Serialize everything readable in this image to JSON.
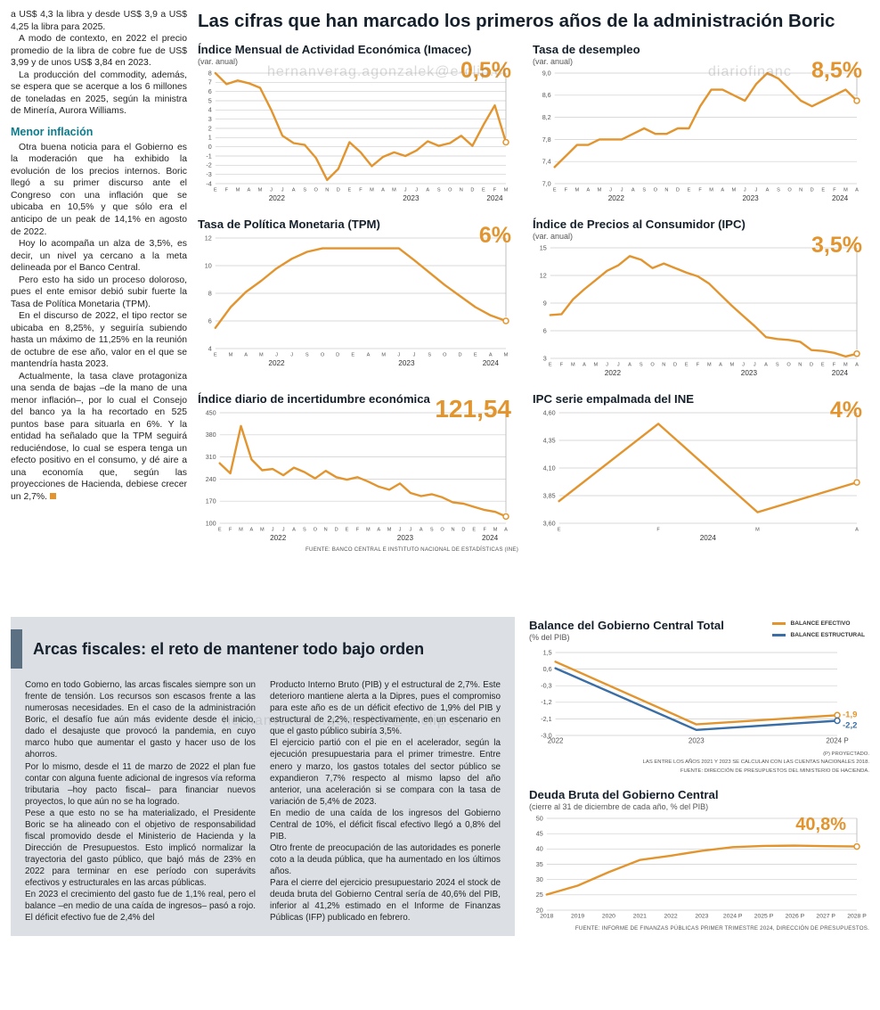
{
  "headline": "Las cifras que han marcado los primeros años de la administración Boric",
  "watermarks": [
    "hernanverag.agonzalek@e-clip.cl",
    "diariofinanc",
    "hernanvero#...gonzalez@e-clip.cl"
  ],
  "colors": {
    "accent_orange": "#E2952F",
    "accent_blue": "#3A6EA5",
    "subhead_teal": "#0E7C8C",
    "headline_dark": "#15202B",
    "graybox_bg": "#DCE0E5",
    "accent_bar": "#5B7083"
  },
  "article": {
    "intro_paragraphs": [
      "a US$ 4,3 la libra y desde US$ 3,9 a US$ 4,25 la libra para 2025.",
      "A modo de contexto, en 2022 el precio promedio de la libra de cobre fue de US$ 3,99 y de unos US$ 3,84 en 2023.",
      "La producción del commodity, además, se espera que se acerque a los 6 millones de toneladas en 2025, según la ministra de Minería, Aurora Williams."
    ],
    "subhead": "Menor inflación",
    "body_paragraphs": [
      "Otra buena noticia para el Gobierno es la moderación que ha exhibido la evolución de los precios internos. Boric llegó a su primer discurso ante el Congreso con una inflación que se ubicaba en 10,5% y que sólo era el anticipo de un peak de 14,1% en agosto de 2022.",
      "Hoy lo acompaña un alza de 3,5%, es decir, un nivel ya cercano a la meta delineada por el Banco Central.",
      "Pero esto ha sido un proceso doloroso, pues el ente emisor debió subir fuerte la Tasa de Política Monetaria (TPM).",
      "En el discurso de 2022, el tipo rector se ubicaba en 8,25%, y seguiría subiendo hasta un máximo de 11,25% en la reunión de octubre de ese año, valor en el que se mantendría hasta 2023.",
      "Actualmente, la tasa clave protagoniza una senda de bajas –de la mano de una menor inflación–, por lo cual el Consejo del banco ya la ha recortado en 525 puntos base para situarla en 6%. Y la entidad ha señalado que la TPM seguirá reduciéndose, lo cual se espera tenga un efecto positivo en el consumo, y dé aire a una economía que, según las proyecciones de Hacienda, debiese crecer un 2,7%."
    ],
    "end_mark": "■"
  },
  "fiscal": {
    "title": "Arcas fiscales: el reto de mantener todo bajo orden",
    "col1": [
      "Como en todo Gobierno, las arcas fiscales siempre son un frente de tensión. Los recursos son escasos frente a las numerosas necesidades. En el caso de la administración Boric, el desafío fue aún más evidente desde el inicio, dado el desajuste que provocó la pandemia, en cuyo marco hubo que aumentar el gasto y hacer uso de los ahorros.",
      "Por lo mismo, desde el 11 de marzo de 2022 el plan fue contar con alguna fuente adicional de ingresos vía reforma tributaria –hoy pacto fiscal– para financiar nuevos proyectos, lo que aún no se ha logrado.",
      "Pese a que esto no se ha materializado, el Presidente Boric se ha alineado con el objetivo de responsabilidad fiscal promovido desde el Ministerio de Hacienda y la Dirección de Presupuestos. Esto implicó normalizar la trayectoria del gasto público, que bajó más de 23% en 2022 para terminar en ese período con superávits efectivos y estructurales en las arcas públicas.",
      "En 2023 el crecimiento del gasto fue de 1,1% real, pero el balance –en medio de una caída de ingresos– pasó a rojo. El déficit efectivo fue de 2,4% del"
    ],
    "col2": [
      "Producto Interno Bruto (PIB) y el estructural de 2,7%. Este deterioro mantiene alerta a la Dipres, pues el compromiso para este año es de un déficit efectivo de 1,9% del PIB y estructural de 2,2%, respectivamente, en un escenario en que el gasto público subiría 3,5%.",
      "El ejercicio partió con el pie en el acelerador, según la ejecución presupuestaria para el primer trimestre. Entre enero y marzo, los gastos totales del sector público se expandieron 7,7% respecto al mismo lapso del año anterior, una aceleración si se compara con la tasa de variación de 5,4% de 2023.",
      "En medio de una caída de los ingresos del Gobierno Central de 10%, el déficit fiscal efectivo llegó a 0,8% del PIB.",
      "Otro frente de preocupación de las autoridades es ponerle coto a la deuda pública, que ha aumentado en los últimos años.",
      "Para el cierre del ejercicio presupuestario 2024 el stock de deuda bruta del Gobierno Central sería de 40,6% del PIB, inferior al 41,2% estimado en el Informe de Finanzas Públicas (IFP) publicado en febrero."
    ]
  },
  "chart_data": [
    {
      "id": "imacec",
      "type": "line",
      "title": "Índice Mensual de Actividad Económica (Imacec)",
      "subtitle": "(var. anual)",
      "big_value": "0,5%",
      "y_min": -4,
      "y_max": 8,
      "y_ticks": [
        8,
        7,
        6,
        5,
        4,
        3,
        2,
        1,
        0,
        -1,
        -2,
        -3,
        -4
      ],
      "y_tick_labels": [
        "8",
        "7",
        "6",
        "5",
        "4",
        "3",
        "2",
        "1",
        "0",
        "-1",
        "-2",
        "-3",
        "-4"
      ],
      "x_labels": [
        "E",
        "F",
        "M",
        "A",
        "M",
        "J",
        "J",
        "A",
        "S",
        "O",
        "N",
        "D",
        "E",
        "F",
        "M",
        "A",
        "M",
        "J",
        "J",
        "A",
        "S",
        "O",
        "N",
        "D",
        "E",
        "F",
        "M"
      ],
      "years": [
        {
          "label": "2022",
          "from": 0,
          "to": 11
        },
        {
          "label": "2023",
          "from": 12,
          "to": 23
        },
        {
          "label": "2024",
          "from": 24,
          "to": 26
        }
      ],
      "series": [
        {
          "name": "Imacec",
          "color": "#E2952F",
          "values": [
            8.0,
            6.8,
            7.2,
            6.9,
            6.4,
            4.0,
            1.2,
            0.4,
            0.2,
            -1.2,
            -3.6,
            -2.4,
            0.5,
            -0.6,
            -2.1,
            -1.1,
            -0.6,
            -1.0,
            -0.4,
            0.6,
            0.1,
            0.4,
            1.2,
            0.1,
            2.4,
            4.5,
            0.5
          ]
        }
      ],
      "source": ""
    },
    {
      "id": "desempleo",
      "type": "line",
      "title": "Tasa de desempleo",
      "subtitle": "(var. anual)",
      "big_value": "8,5%",
      "y_min": 7.0,
      "y_max": 9.0,
      "y_ticks": [
        9.0,
        8.6,
        8.2,
        7.8,
        7.4,
        7.0
      ],
      "y_tick_labels": [
        "9,0",
        "8,6",
        "8,2",
        "7,8",
        "7,4",
        "7,0"
      ],
      "x_labels": [
        "E",
        "F",
        "M",
        "A",
        "M",
        "J",
        "J",
        "A",
        "S",
        "O",
        "N",
        "D",
        "E",
        "F",
        "M",
        "A",
        "M",
        "J",
        "J",
        "A",
        "S",
        "O",
        "N",
        "D",
        "E",
        "F",
        "M",
        "A"
      ],
      "years": [
        {
          "label": "2022",
          "from": 0,
          "to": 11
        },
        {
          "label": "2023",
          "from": 12,
          "to": 23
        },
        {
          "label": "2024",
          "from": 24,
          "to": 27
        }
      ],
      "series": [
        {
          "name": "Tasa de desempleo",
          "color": "#E2952F",
          "values": [
            7.3,
            7.5,
            7.7,
            7.7,
            7.8,
            7.8,
            7.8,
            7.9,
            8.0,
            7.9,
            7.9,
            8.0,
            8.0,
            8.4,
            8.7,
            8.7,
            8.6,
            8.5,
            8.8,
            9.0,
            8.9,
            8.7,
            8.5,
            8.4,
            8.5,
            8.6,
            8.7,
            8.5
          ]
        }
      ],
      "source": ""
    },
    {
      "id": "tpm",
      "type": "line",
      "title": "Tasa de Política Monetaria (TPM)",
      "subtitle": "",
      "big_value": "6%",
      "y_min": 4,
      "y_max": 12,
      "y_ticks": [
        12,
        10,
        8,
        6,
        4
      ],
      "y_tick_labels": [
        "12",
        "10",
        "8",
        "6",
        "4"
      ],
      "x_labels": [
        "E",
        "M",
        "A",
        "M",
        "J",
        "J",
        "S",
        "O",
        "D",
        "E",
        "A",
        "M",
        "J",
        "J",
        "S",
        "O",
        "D",
        "E",
        "A",
        "M"
      ],
      "years": [
        {
          "label": "2022",
          "from": 0,
          "to": 8
        },
        {
          "label": "2023",
          "from": 9,
          "to": 16
        },
        {
          "label": "2024",
          "from": 17,
          "to": 19
        }
      ],
      "series": [
        {
          "name": "TPM",
          "color": "#E2952F",
          "values": [
            5.5,
            7.0,
            8.1,
            8.9,
            9.8,
            10.5,
            11.0,
            11.25,
            11.25,
            11.25,
            11.25,
            11.25,
            11.25,
            10.4,
            9.5,
            8.6,
            7.8,
            7.0,
            6.4,
            6.0
          ]
        }
      ],
      "source": ""
    },
    {
      "id": "ipc",
      "type": "line",
      "title": "Índice de Precios al Consumidor (IPC)",
      "subtitle": "(var. anual)",
      "big_value": "3,5%",
      "y_min": 3,
      "y_max": 15,
      "y_ticks": [
        15,
        12,
        9,
        6,
        3
      ],
      "y_tick_labels": [
        "15",
        "12",
        "9",
        "6",
        "3"
      ],
      "x_labels": [
        "E",
        "F",
        "M",
        "A",
        "M",
        "J",
        "J",
        "A",
        "S",
        "O",
        "N",
        "D",
        "E",
        "F",
        "M",
        "A",
        "M",
        "J",
        "J",
        "A",
        "S",
        "O",
        "N",
        "D",
        "E",
        "F",
        "M",
        "A"
      ],
      "years": [
        {
          "label": "2022",
          "from": 0,
          "to": 11
        },
        {
          "label": "2023",
          "from": 12,
          "to": 23
        },
        {
          "label": "2024",
          "from": 24,
          "to": 27
        }
      ],
      "series": [
        {
          "name": "IPC",
          "color": "#E2952F",
          "values": [
            7.7,
            7.8,
            9.4,
            10.5,
            11.5,
            12.5,
            13.1,
            14.1,
            13.7,
            12.8,
            13.3,
            12.8,
            12.3,
            11.9,
            11.1,
            9.9,
            8.7,
            7.6,
            6.5,
            5.3,
            5.1,
            5.0,
            4.8,
            3.9,
            3.8,
            3.6,
            3.2,
            3.5
          ]
        }
      ],
      "source": ""
    },
    {
      "id": "incertidumbre",
      "type": "line",
      "title": "Índice diario de incertidumbre económica",
      "subtitle": "",
      "big_value": "121,54",
      "y_min": 100,
      "y_max": 450,
      "y_ticks": [
        450,
        380,
        310,
        240,
        170,
        100
      ],
      "y_tick_labels": [
        "450",
        "380",
        "310",
        "240",
        "170",
        "100"
      ],
      "x_labels": [
        "E",
        "F",
        "M",
        "A",
        "M",
        "J",
        "J",
        "A",
        "S",
        "O",
        "N",
        "D",
        "E",
        "F",
        "M",
        "A",
        "M",
        "J",
        "J",
        "A",
        "S",
        "O",
        "N",
        "D",
        "E",
        "F",
        "M",
        "A"
      ],
      "years": [
        {
          "label": "2022",
          "from": 0,
          "to": 11
        },
        {
          "label": "2023",
          "from": 12,
          "to": 23
        },
        {
          "label": "2024",
          "from": 24,
          "to": 27
        }
      ],
      "series": [
        {
          "name": "Incertidumbre económica",
          "color": "#E2952F",
          "values": [
            290,
            258,
            408,
            302,
            268,
            272,
            252,
            276,
            262,
            242,
            266,
            246,
            238,
            246,
            232,
            216,
            206,
            226,
            196,
            186,
            192,
            182,
            166,
            162,
            152,
            142,
            136,
            121.54
          ]
        }
      ],
      "source": "FUENTE: BANCO CENTRAL E INSTITUTO NACIONAL DE ESTADÍSTICAS (INE)"
    },
    {
      "id": "ipc-ine",
      "type": "line",
      "title": "IPC serie empalmada del INE",
      "subtitle": "",
      "big_value": "4%",
      "y_min": 3.6,
      "y_max": 4.6,
      "y_ticks": [
        4.6,
        4.35,
        4.1,
        3.85,
        3.6
      ],
      "y_tick_labels": [
        "4,60",
        "4,35",
        "4,10",
        "3,85",
        "3,60"
      ],
      "x_labels": [
        "E",
        "F",
        "M",
        "A"
      ],
      "years": [
        {
          "label": "2024",
          "from": 0,
          "to": 3
        }
      ],
      "series": [
        {
          "name": "IPC serie empalmada",
          "color": "#E2952F",
          "values": [
            3.8,
            4.5,
            3.7,
            3.97
          ]
        }
      ],
      "source": ""
    },
    {
      "id": "balance",
      "type": "line",
      "title": "Balance del Gobierno Central Total",
      "subtitle": "(% del PIB)",
      "big_value": "",
      "right_pad": true,
      "y_min": -3.0,
      "y_max": 1.5,
      "y_ticks": [
        1.5,
        0.6,
        -0.3,
        -1.2,
        -2.1,
        -3.0
      ],
      "y_tick_labels": [
        "1,5",
        "0,6",
        "-0,3",
        "-1,2",
        "-2,1",
        "-3,0"
      ],
      "x_labels": [
        "2022",
        "2023",
        "2024 P"
      ],
      "years": [],
      "legend": [
        {
          "label": "BALANCE EFECTIVO",
          "color": "#E2952F"
        },
        {
          "label": "BALANCE ESTRUCTURAL",
          "color": "#3A6EA5"
        }
      ],
      "series": [
        {
          "name": "Balance efectivo",
          "color": "#E2952F",
          "values": [
            1.0,
            -2.4,
            -1.9
          ],
          "end_label": "-1,9",
          "end_circle": true,
          "label_dy": -1
        },
        {
          "name": "Balance estructural",
          "color": "#3A6EA5",
          "values": [
            0.65,
            -2.7,
            -2.2
          ],
          "end_label": "-2,2",
          "end_circle": true,
          "label_dy": 5
        }
      ],
      "footnotes": [
        "(P) PROYECTADO.",
        "LAS ENTRE LOS AÑOS 2021 Y 2023 SE CALCULAN CON LAS CUENTAS NACIONALES 2018.",
        "FUENTE: DIRECCIÓN DE PRESUPUESTOS DEL MINISTERIO DE HACIENDA."
      ],
      "source": ""
    },
    {
      "id": "deuda",
      "type": "line",
      "title": "Deuda Bruta del Gobierno Central",
      "subtitle": "(cierre al 31 de diciembre de cada año, % del PIB)",
      "big_value": "40,8%",
      "y_min": 20,
      "y_max": 50,
      "y_ticks": [
        50,
        45,
        40,
        35,
        30,
        25,
        20
      ],
      "y_tick_labels": [
        "50",
        "45",
        "40",
        "35",
        "30",
        "25",
        "20"
      ],
      "x_labels": [
        "2018",
        "2019",
        "2020",
        "2021",
        "2022",
        "2023",
        "2024 P",
        "2025 P",
        "2026 P",
        "2027 P",
        "2028 P"
      ],
      "years": [],
      "series": [
        {
          "name": "Deuda bruta",
          "color": "#E2952F",
          "values": [
            25.1,
            28.0,
            32.4,
            36.4,
            37.8,
            39.4,
            40.6,
            41.0,
            41.1,
            40.9,
            40.8
          ]
        }
      ],
      "source": "FUENTE: INFORME DE FINANZAS PÚBLICAS PRIMER TRIMESTRE 2024, DIRECCIÓN DE PRESUPUESTOS."
    }
  ]
}
